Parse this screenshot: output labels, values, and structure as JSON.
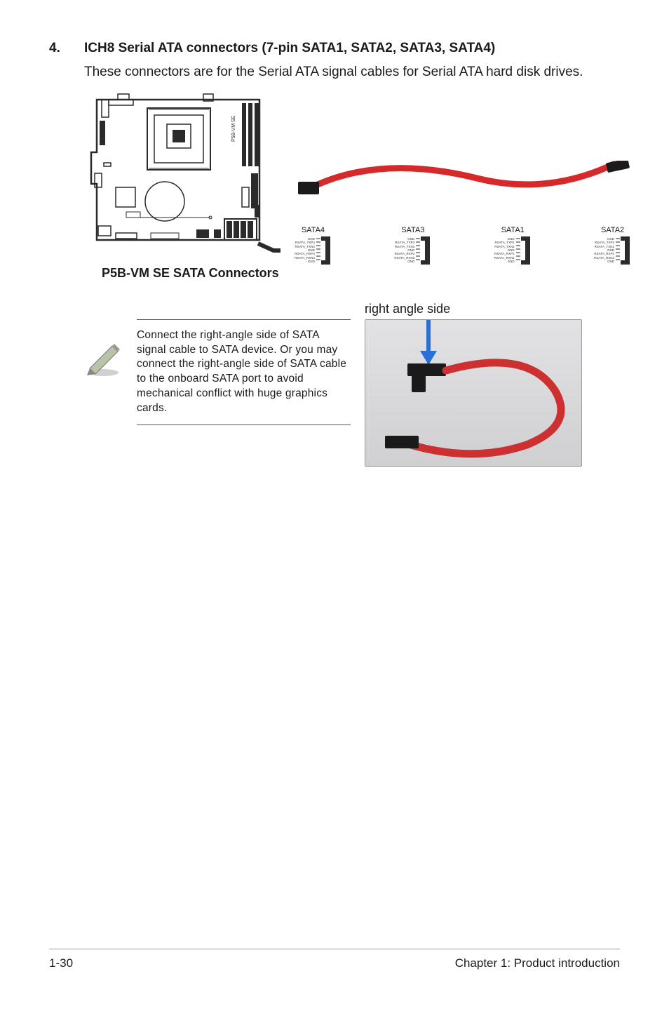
{
  "section": {
    "number": "4.",
    "title": "ICH8 Serial ATA connectors (7-pin SATA1, SATA2, SATA3, SATA4)",
    "body": "These connectors are for the Serial ATA signal cables for Serial ATA hard disk drives."
  },
  "board_diagram": {
    "caption": "P5B-VM SE SATA Connectors",
    "side_label": "P5B-VM SE",
    "outline_color": "#2b2b2b",
    "fill_color": "#ffffff"
  },
  "cable": {
    "color": "#d62a2a",
    "connector_color": "#1b1b1b"
  },
  "sata_ports": [
    {
      "label": "SATA4",
      "pins": [
        "GND",
        "RSATA_TXP4",
        "RSATA_TXN4",
        "GND",
        "RSATA_RXP4",
        "RSATA_RXN4",
        "GND"
      ]
    },
    {
      "label": "SATA3",
      "pins": [
        "GND",
        "RSATA_TXP3",
        "RSATA_TXN3",
        "GND",
        "RSATA_RXP3",
        "RSATA_RXN3",
        "GND"
      ]
    },
    {
      "label": "SATA1",
      "pins": [
        "GND",
        "RSATA_TXP1",
        "RSATA_TXN1",
        "GND",
        "RSATA_RXP1",
        "RSATA_RXN1",
        "GND"
      ]
    },
    {
      "label": "SATA2",
      "pins": [
        "GND",
        "RSATA_TXP2",
        "RSATA_TXN2",
        "GND",
        "RSATA_RXP2",
        "RSATA_RXN2",
        "GND"
      ]
    }
  ],
  "note": {
    "right_title": "right angle side",
    "text": "Connect the right-angle side of SATA signal cable to SATA device. Or you may connect the right-angle side of SATA cable to the onboard SATA port to avoid mechanical conflict with huge graphics cards.",
    "pencil_color": "#b8c4a8",
    "arrow_color": "#2a6fd8"
  },
  "photo": {
    "bg_top": "#e2e2e4",
    "bg_bottom": "#d0d0d2",
    "cable_color": "#cc3030",
    "connector_color": "#1a1a1a"
  },
  "footer": {
    "left": "1-30",
    "right": "Chapter 1: Product introduction"
  }
}
